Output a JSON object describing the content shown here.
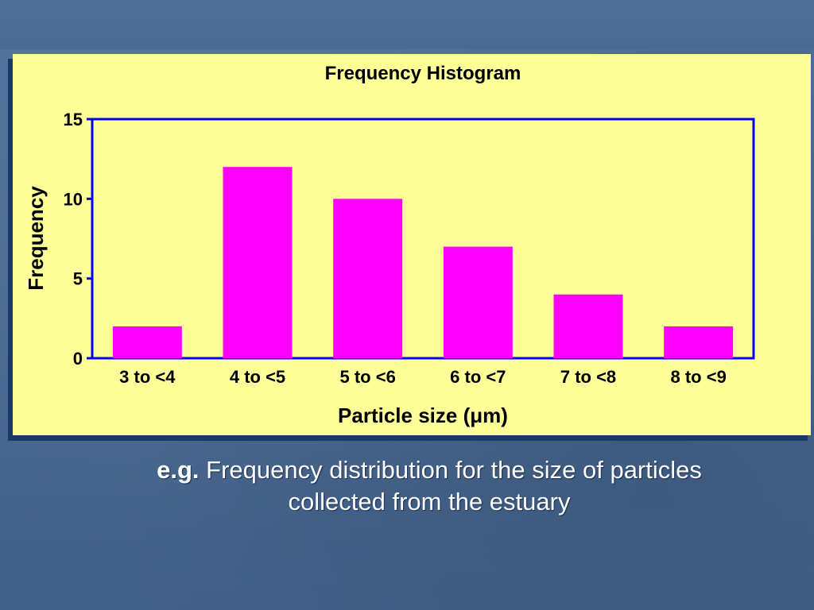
{
  "colors": {
    "panel": "#ffff99",
    "bar": "#ff00ff",
    "axis": "#0000ff",
    "text": "#000000"
  },
  "chart_data": {
    "type": "bar",
    "title": "Frequency Histogram",
    "xlabel": "Particle size (μm)",
    "ylabel": "Frequency",
    "categories": [
      "3 to <4",
      "4 to <5",
      "5 to <6",
      "6 to <7",
      "7 to <8",
      "8 to <9"
    ],
    "values": [
      2,
      12,
      10,
      7,
      4,
      2
    ],
    "ylim": [
      0,
      15
    ],
    "yticks": [
      0,
      5,
      10,
      15
    ],
    "grid": false,
    "legend": "none"
  },
  "caption": {
    "lead": "e.g.",
    "text_line1": "Frequency distribution for the size of particles",
    "text_line2": "collected from the estuary"
  }
}
